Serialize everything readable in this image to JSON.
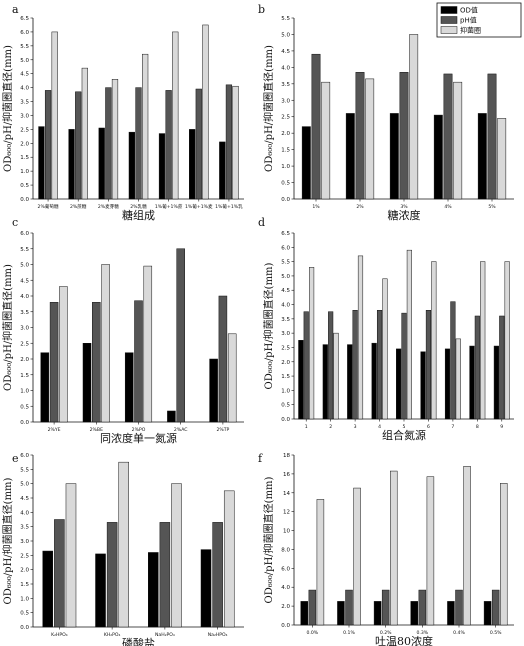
{
  "legend": {
    "items": [
      {
        "label": "OD值",
        "color": "#000000"
      },
      {
        "label": "pH值",
        "color": "#555555"
      },
      {
        "label": "抑菌圈",
        "color": "#d9d9d9"
      }
    ]
  },
  "chart_data": [
    {
      "id": "a",
      "type": "bar",
      "letter": "a",
      "xlabel": "糖组成",
      "ylabel": "OD₆₀₀/pH/抑菌圈直径(mm)",
      "ylim": [
        0,
        6.5
      ],
      "yticks": [
        0,
        0.5,
        1.0,
        1.5,
        2.0,
        2.5,
        3.0,
        3.5,
        4.0,
        4.5,
        5.0,
        5.5,
        6.0,
        6.5
      ],
      "categories": [
        "2%葡萄糖",
        "2%蔗糖",
        "2%麦芽糖",
        "2%乳糖",
        "1%葡+1%蔗",
        "1%葡+1%麦",
        "1%葡+1%乳"
      ],
      "series": [
        {
          "values": [
            2.6,
            2.5,
            2.55,
            2.4,
            2.35,
            2.5,
            2.05
          ]
        },
        {
          "values": [
            3.9,
            3.85,
            4.0,
            4.0,
            3.9,
            3.95,
            4.1
          ]
        },
        {
          "values": [
            6.0,
            4.7,
            4.3,
            5.2,
            6.0,
            6.25,
            4.05
          ]
        }
      ]
    },
    {
      "id": "b",
      "type": "bar",
      "letter": "b",
      "xlabel": "糖浓度",
      "ylabel": "OD₆₀₀/pH/抑菌圈直径(mm)",
      "ylim": [
        0,
        5.5
      ],
      "yticks": [
        0,
        0.5,
        1.0,
        1.5,
        2.0,
        2.5,
        3.0,
        3.5,
        4.0,
        4.5,
        5.0,
        5.5
      ],
      "categories": [
        "1%",
        "2%",
        "3%",
        "4%",
        "5%"
      ],
      "series": [
        {
          "values": [
            2.2,
            2.6,
            2.6,
            2.55,
            2.6
          ]
        },
        {
          "values": [
            4.4,
            3.85,
            3.85,
            3.8,
            3.8
          ]
        },
        {
          "values": [
            3.55,
            3.65,
            5.0,
            3.55,
            2.45
          ]
        }
      ]
    },
    {
      "id": "c",
      "type": "bar",
      "letter": "c",
      "xlabel": "同浓度单一氮源",
      "ylabel": "OD₆₀₀/pH/抑菌圈直径(mm)",
      "ylim": [
        0,
        6.0
      ],
      "yticks": [
        0,
        0.5,
        1.0,
        1.5,
        2.0,
        2.5,
        3.0,
        3.5,
        4.0,
        4.5,
        5.0,
        5.5,
        6.0
      ],
      "categories": [
        "2%YE",
        "2%BE",
        "2%PO",
        "2%AC",
        "2%TP"
      ],
      "series": [
        {
          "values": [
            2.2,
            2.5,
            2.2,
            0.35,
            2.0
          ]
        },
        {
          "values": [
            3.8,
            3.8,
            3.85,
            5.5,
            4.0
          ]
        },
        {
          "values": [
            4.3,
            5.0,
            4.95,
            0,
            2.8
          ]
        }
      ]
    },
    {
      "id": "d",
      "type": "bar",
      "letter": "d",
      "xlabel": "组合氮源",
      "ylabel": "OD₆₀₀/pH/抑菌圈直径(mm)",
      "ylim": [
        0,
        6.5
      ],
      "yticks": [
        0,
        0.5,
        1.0,
        1.5,
        2.0,
        2.5,
        3.0,
        3.5,
        4.0,
        4.5,
        5.0,
        5.5,
        6.0,
        6.5
      ],
      "categories": [
        "1",
        "2",
        "3",
        "4",
        "5",
        "6",
        "7",
        "8",
        "9"
      ],
      "series": [
        {
          "values": [
            2.75,
            2.6,
            2.6,
            2.65,
            2.45,
            2.35,
            2.45,
            2.55,
            2.55
          ]
        },
        {
          "values": [
            3.75,
            3.75,
            3.8,
            3.8,
            3.7,
            3.8,
            4.1,
            3.6,
            3.6
          ]
        },
        {
          "values": [
            5.3,
            3.0,
            5.7,
            4.9,
            5.9,
            5.5,
            2.8,
            5.5,
            5.5
          ]
        }
      ]
    },
    {
      "id": "e",
      "type": "bar",
      "letter": "e",
      "xlabel": "磷酸盐",
      "ylabel": "OD₆₀₀/pH/抑菌圈直径(mm)",
      "ylim": [
        0,
        6.0
      ],
      "yticks": [
        0,
        0.5,
        1.0,
        1.5,
        2.0,
        2.5,
        3.0,
        3.5,
        4.0,
        4.5,
        5.0,
        5.5,
        6.0
      ],
      "categories": [
        "K₂HPO₄",
        "KH₂PO₄",
        "NaH₂PO₄",
        "Na₂HPO₄"
      ],
      "series": [
        {
          "values": [
            2.65,
            2.55,
            2.6,
            2.7
          ]
        },
        {
          "values": [
            3.75,
            3.65,
            3.65,
            3.65
          ]
        },
        {
          "values": [
            5.0,
            5.75,
            5.0,
            4.75
          ]
        }
      ]
    },
    {
      "id": "f",
      "type": "bar",
      "letter": "f",
      "xlabel": "吐温80浓度",
      "ylabel": "OD₆₀₀/pH/抑菌圈直径(mm)",
      "ylim": [
        0,
        18
      ],
      "yticks": [
        0,
        2,
        4,
        6,
        8,
        10,
        12,
        14,
        16,
        18
      ],
      "categories": [
        "0.0%",
        "0.1%",
        "0.2%",
        "0.3%",
        "0.4%",
        "0.5%"
      ],
      "series": [
        {
          "values": [
            2.5,
            2.5,
            2.5,
            2.5,
            2.5,
            2.5
          ]
        },
        {
          "values": [
            3.7,
            3.7,
            3.7,
            3.7,
            3.7,
            3.7
          ]
        },
        {
          "values": [
            13.3,
            14.5,
            16.3,
            15.7,
            16.8,
            15.0
          ]
        }
      ]
    }
  ]
}
